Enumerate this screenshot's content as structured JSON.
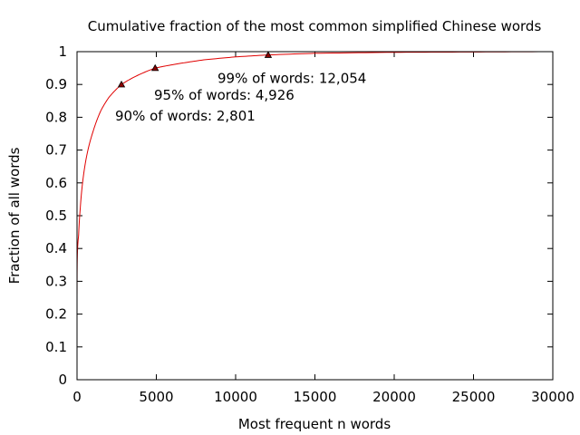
{
  "chart_data": {
    "type": "line",
    "title": "Cumulative fraction of the most common simplified Chinese words",
    "xlabel": "Most frequent n words",
    "ylabel": "Fraction of all words",
    "xlim": [
      0,
      30000
    ],
    "ylim": [
      0,
      1
    ],
    "x_ticks": [
      0,
      5000,
      10000,
      15000,
      20000,
      25000,
      30000
    ],
    "x_tick_labels": [
      "0",
      "5000",
      "10000",
      "15000",
      "20000",
      "25000",
      "30000"
    ],
    "y_ticks": [
      0,
      0.1,
      0.2,
      0.3,
      0.4,
      0.5,
      0.6,
      0.7,
      0.8,
      0.9,
      1
    ],
    "y_tick_labels": [
      "0",
      "0.1",
      "0.2",
      "0.3",
      "0.4",
      "0.5",
      "0.6",
      "0.7",
      "0.8",
      "0.9",
      "1"
    ],
    "grid": false,
    "series": [
      {
        "color": "#e00000",
        "x": [
          1,
          100,
          200,
          400,
          600,
          1000,
          1500,
          2000,
          2801,
          3500,
          4926,
          6000,
          7000,
          8000,
          10000,
          12054,
          15000,
          20000,
          25000,
          30000
        ],
        "y": [
          0.26,
          0.44,
          0.52,
          0.62,
          0.68,
          0.755,
          0.82,
          0.86,
          0.9,
          0.92,
          0.95,
          0.96,
          0.968,
          0.975,
          0.984,
          0.99,
          0.995,
          0.998,
          0.999,
          1.0
        ]
      }
    ],
    "markers": [
      {
        "x": 2801,
        "y": 0.9,
        "label": "90% of words: 2,801"
      },
      {
        "x": 4926,
        "y": 0.95,
        "label": "95% of words: 4,926"
      },
      {
        "x": 12054,
        "y": 0.99,
        "label": "99% of words: 12,054"
      }
    ],
    "marker_color": "#000000"
  }
}
